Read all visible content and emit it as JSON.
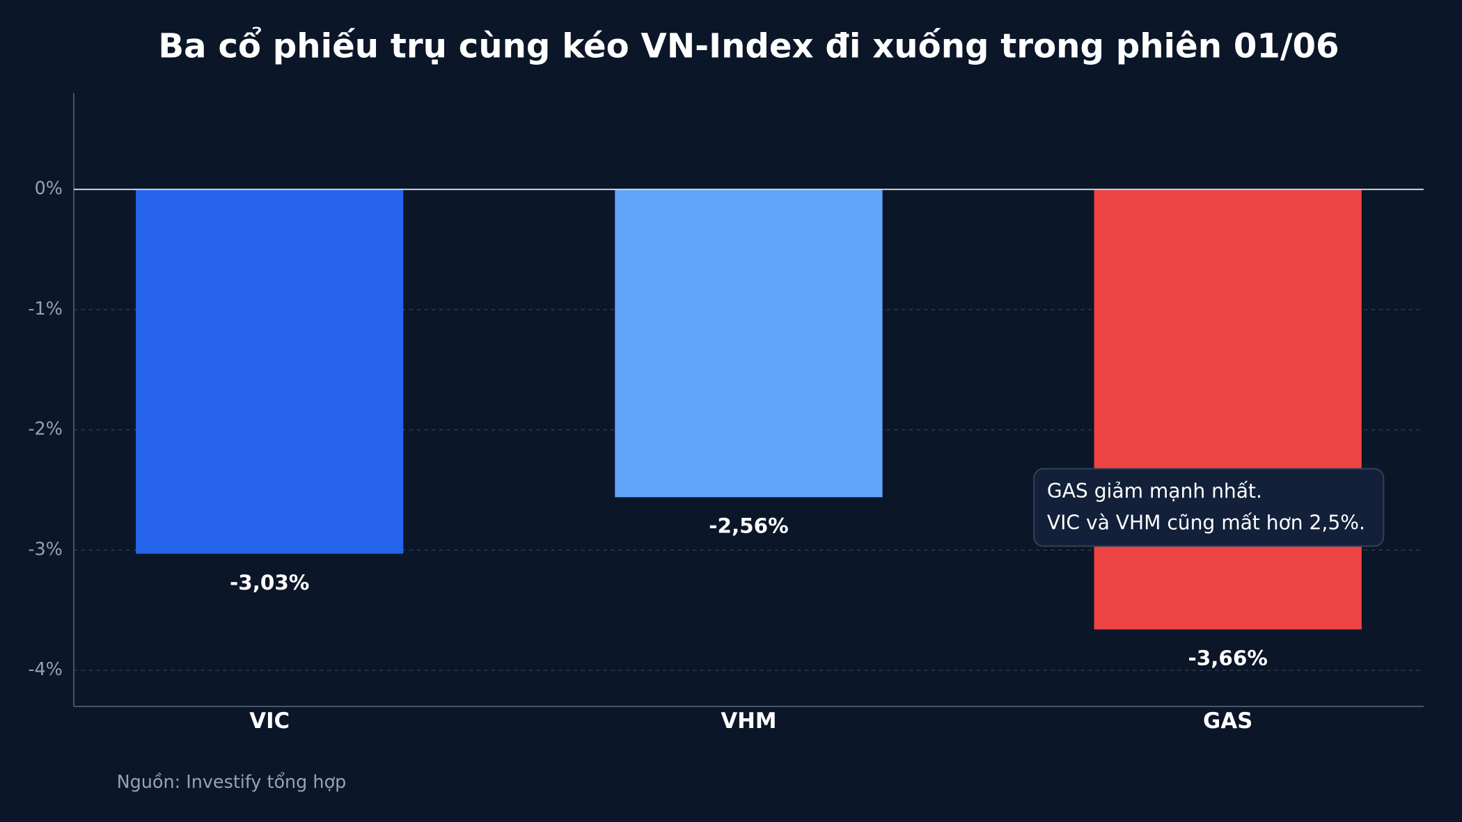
{
  "chart_data": {
    "type": "bar",
    "title": "Ba cổ phiếu trụ cùng kéo VN-Index đi xuống trong phiên 01/06",
    "categories": [
      "VIC",
      "VHM",
      "GAS"
    ],
    "values": [
      -3.03,
      -2.56,
      -3.66
    ],
    "value_labels": [
      "-3,03%",
      "-2,56%",
      "-3,66%"
    ],
    "colors": [
      "#2563eb",
      "#60a5fa",
      "#ef4444"
    ],
    "ylim": [
      -4.3,
      0.8
    ],
    "yticks": [
      {
        "value": 0,
        "label": "0%"
      },
      {
        "value": -1,
        "label": "-1%"
      },
      {
        "value": -2,
        "label": "-2%"
      },
      {
        "value": -3,
        "label": "-3%"
      },
      {
        "value": -4,
        "label": "-4%"
      }
    ],
    "grid": true,
    "annotation": [
      "GAS giảm mạnh nhất.",
      "VIC và VHM cũng mất hơn 2,5%."
    ],
    "source": "Nguồn: Investify tổng hợp"
  }
}
